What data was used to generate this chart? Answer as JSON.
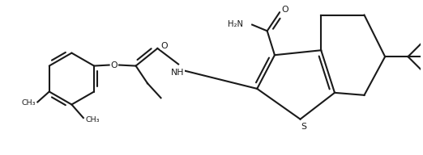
{
  "background_color": "#ffffff",
  "line_color": "#1a1a1a",
  "line_width": 1.5,
  "figsize": [
    5.22,
    1.92
  ],
  "dpi": 100,
  "xlim": [
    0,
    10
  ],
  "ylim": [
    0,
    3.7
  ]
}
